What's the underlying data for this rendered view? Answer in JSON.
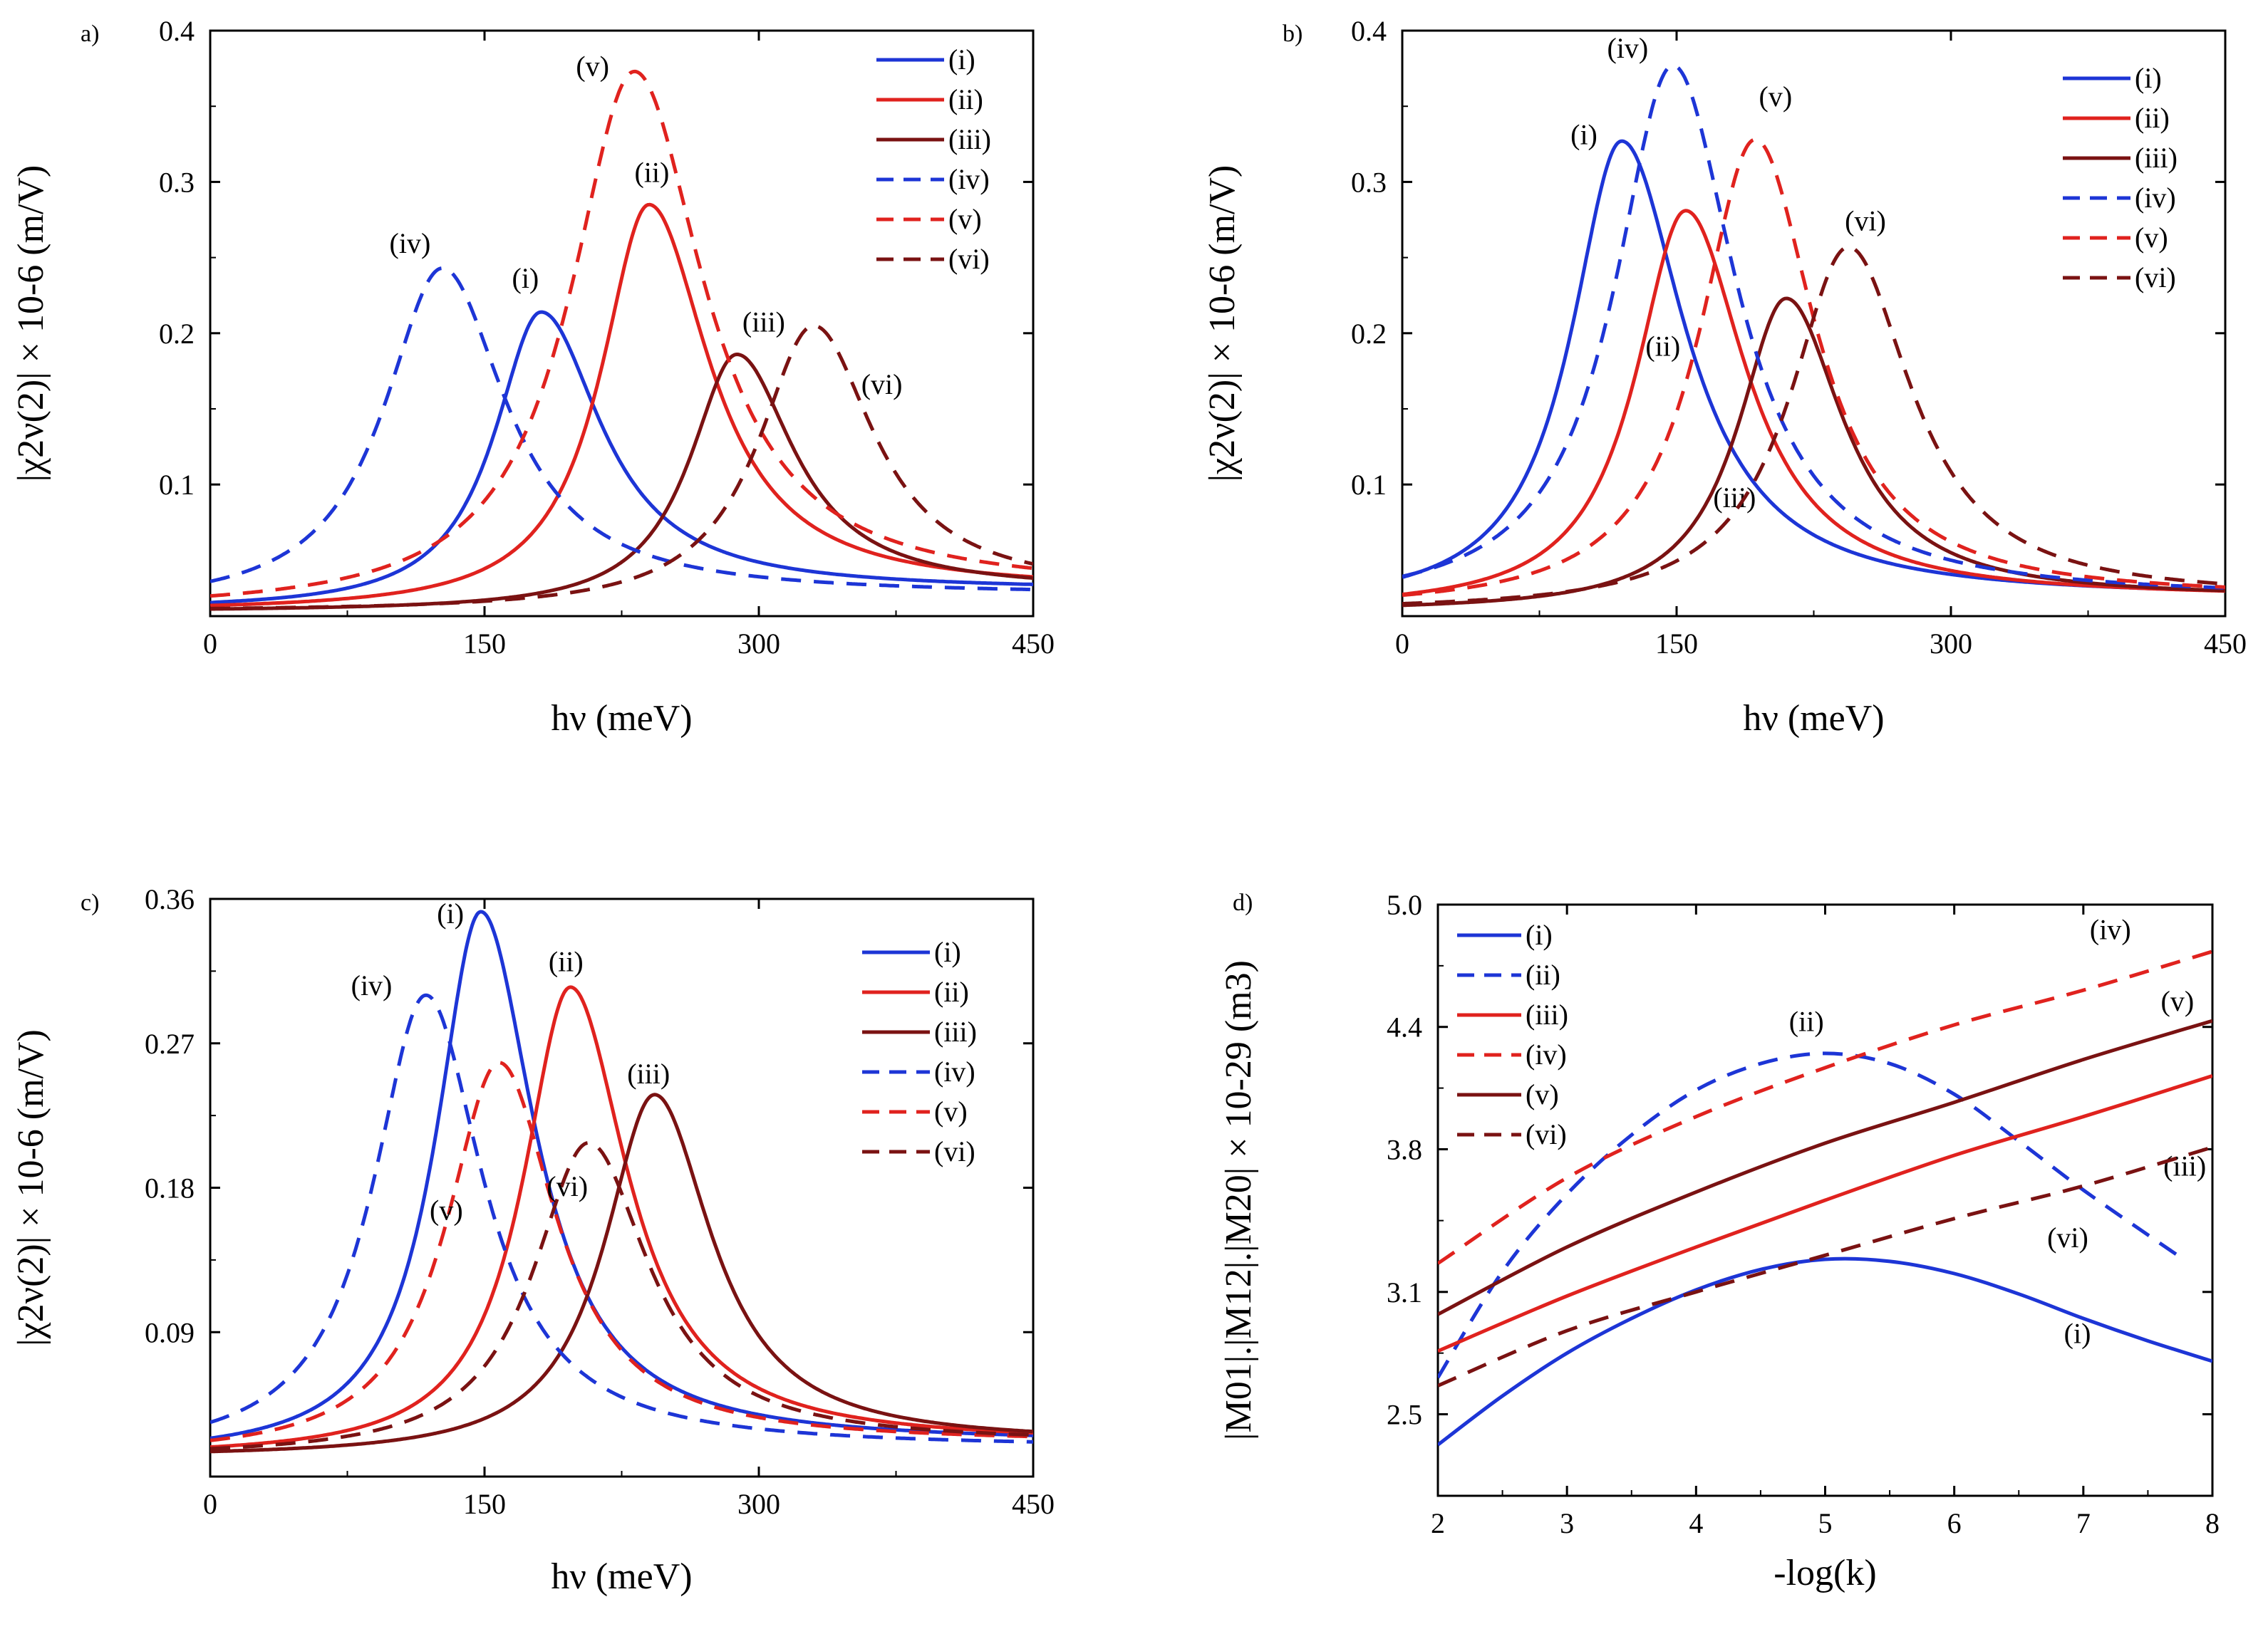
{
  "colors": {
    "blue": "#1d35d6",
    "red": "#e0221e",
    "darkred": "#7a1212"
  },
  "chart_data": [
    {
      "id": "a",
      "panel_label": "a)",
      "type": "line",
      "xlim": [
        0,
        450
      ],
      "ylim": [
        0.013,
        0.4
      ],
      "xticks": [
        0,
        150,
        300,
        450
      ],
      "xtick_labels": [
        "0",
        "150",
        "300",
        "450"
      ],
      "yticks": [
        0.1,
        0.2,
        0.3,
        0.4
      ],
      "ytick_labels": [
        "0.1",
        "0.2",
        "0.3",
        "0.4"
      ],
      "xlabel": "hν (meV)",
      "ylabel": "|χ2ν(2)| × 10-6 (m/V)",
      "legend": [
        "(i)",
        "(ii)",
        "(iii)",
        "(iv)",
        "(v)",
        "(vi)"
      ],
      "legend_position": "top-right",
      "series": [
        {
          "name": "(i)",
          "color": "blue",
          "dash": false,
          "peak_x": 181,
          "peak_y": 0.214,
          "base_left": 0.017,
          "base_right": 0.03,
          "width": 40,
          "rise": 0.8,
          "label": "(i)",
          "label_at": [
            165,
            0.23
          ]
        },
        {
          "name": "(ii)",
          "color": "red",
          "dash": false,
          "peak_x": 240,
          "peak_y": 0.285,
          "base_left": 0.016,
          "base_right": 0.03,
          "width": 40,
          "rise": 0.82,
          "label": "(ii)",
          "label_at": [
            232,
            0.3
          ]
        },
        {
          "name": "(iii)",
          "color": "darkred",
          "dash": false,
          "peak_x": 288,
          "peak_y": 0.186,
          "base_left": 0.016,
          "base_right": 0.03,
          "width": 38,
          "rise": 0.85,
          "label": "(iii)",
          "label_at": [
            291,
            0.201
          ]
        },
        {
          "name": "(iv)",
          "color": "blue",
          "dash": true,
          "peak_x": 127,
          "peak_y": 0.243,
          "base_left": 0.018,
          "base_right": 0.027,
          "width": 42,
          "rise": 0.95,
          "label": "(iv)",
          "label_at": [
            98,
            0.253
          ]
        },
        {
          "name": "(v)",
          "color": "red",
          "dash": true,
          "peak_x": 232,
          "peak_y": 0.373,
          "base_left": 0.016,
          "base_right": 0.03,
          "width": 46,
          "rise": 0.95,
          "label": "(v)",
          "label_at": [
            200,
            0.37
          ]
        },
        {
          "name": "(vi)",
          "color": "darkred",
          "dash": true,
          "peak_x": 330,
          "peak_y": 0.205,
          "base_left": 0.016,
          "base_right": 0.03,
          "width": 40,
          "rise": 0.95,
          "label": "(vi)",
          "label_at": [
            356,
            0.16
          ]
        }
      ]
    },
    {
      "id": "b",
      "panel_label": "b)",
      "type": "line",
      "xlim": [
        0,
        450
      ],
      "ylim": [
        0.013,
        0.4
      ],
      "xticks": [
        0,
        150,
        300,
        450
      ],
      "xtick_labels": [
        "0",
        "150",
        "300",
        "450"
      ],
      "yticks": [
        0.1,
        0.2,
        0.3,
        0.4
      ],
      "ytick_labels": [
        "0.1",
        "0.2",
        "0.3",
        "0.4"
      ],
      "xlabel": "hν (meV)",
      "ylabel": "|χ2ν(2)| × 10-6 (m/V)",
      "legend": [
        "(i)",
        "(ii)",
        "(iii)",
        "(iv)",
        "(v)",
        "(vi)"
      ],
      "legend_position": "top-right",
      "series": [
        {
          "name": "(i)",
          "color": "blue",
          "dash": false,
          "peak_x": 120,
          "peak_y": 0.327,
          "base_left": 0.018,
          "base_right": 0.025,
          "width": 42,
          "rise": 0.82,
          "label": "(i)",
          "label_at": [
            92,
            0.325
          ]
        },
        {
          "name": "(ii)",
          "color": "red",
          "dash": false,
          "peak_x": 155,
          "peak_y": 0.281,
          "base_left": 0.017,
          "base_right": 0.025,
          "width": 40,
          "rise": 0.85,
          "label": "(ii)",
          "label_at": [
            133,
            0.185
          ]
        },
        {
          "name": "(iii)",
          "color": "darkred",
          "dash": false,
          "peak_x": 210,
          "peak_y": 0.223,
          "base_left": 0.016,
          "base_right": 0.025,
          "width": 38,
          "rise": 0.87,
          "label": "(iii)",
          "label_at": [
            170,
            0.085
          ]
        },
        {
          "name": "(iv)",
          "color": "blue",
          "dash": true,
          "peak_x": 148,
          "peak_y": 0.377,
          "base_left": 0.018,
          "base_right": 0.025,
          "width": 42,
          "rise": 0.95,
          "label": "(iv)",
          "label_at": [
            112,
            0.382
          ]
        },
        {
          "name": "(v)",
          "color": "red",
          "dash": true,
          "peak_x": 193,
          "peak_y": 0.328,
          "base_left": 0.017,
          "base_right": 0.025,
          "width": 40,
          "rise": 0.95,
          "label": "(v)",
          "label_at": [
            195,
            0.35
          ]
        },
        {
          "name": "(vi)",
          "color": "darkred",
          "dash": true,
          "peak_x": 244,
          "peak_y": 0.257,
          "base_left": 0.016,
          "base_right": 0.025,
          "width": 42,
          "rise": 0.95,
          "label": "(vi)",
          "label_at": [
            242,
            0.268
          ]
        }
      ]
    },
    {
      "id": "c",
      "panel_label": "c)",
      "type": "line",
      "xlim": [
        0,
        450
      ],
      "ylim": [
        0.0,
        0.36
      ],
      "xticks": [
        0,
        150,
        300,
        450
      ],
      "xtick_labels": [
        "0",
        "150",
        "300",
        "450"
      ],
      "yticks": [
        0.09,
        0.18,
        0.27,
        0.36
      ],
      "ytick_labels": [
        "0.09",
        "0.18",
        "0.27",
        "0.36"
      ],
      "xlabel": "hν (meV)",
      "ylabel": "|χ2ν(2)| × 10-6 (m/V)",
      "legend": [
        "(i)",
        "(ii)",
        "(iii)",
        "(iv)",
        "(v)",
        "(vi)"
      ],
      "legend_position": "top-right",
      "series": [
        {
          "name": "(i)",
          "color": "blue",
          "dash": false,
          "peak_x": 148,
          "peak_y": 0.352,
          "base_left": 0.012,
          "base_right": 0.021,
          "width": 36,
          "rise": 0.85,
          "label": "(i)",
          "label_at": [
            124,
            0.345
          ]
        },
        {
          "name": "(ii)",
          "color": "red",
          "dash": false,
          "peak_x": 197,
          "peak_y": 0.305,
          "base_left": 0.012,
          "base_right": 0.021,
          "width": 38,
          "rise": 0.85,
          "label": "(ii)",
          "label_at": [
            185,
            0.315
          ]
        },
        {
          "name": "(iii)",
          "color": "darkred",
          "dash": false,
          "peak_x": 243,
          "peak_y": 0.238,
          "base_left": 0.012,
          "base_right": 0.021,
          "width": 38,
          "rise": 0.9,
          "label": "(iii)",
          "label_at": [
            228,
            0.245
          ]
        },
        {
          "name": "(iv)",
          "color": "blue",
          "dash": true,
          "peak_x": 118,
          "peak_y": 0.3,
          "base_left": 0.012,
          "base_right": 0.018,
          "width": 38,
          "rise": 0.95,
          "label": "(iv)",
          "label_at": [
            77,
            0.3
          ]
        },
        {
          "name": "(v)",
          "color": "red",
          "dash": true,
          "peak_x": 158,
          "peak_y": 0.258,
          "base_left": 0.012,
          "base_right": 0.021,
          "width": 38,
          "rise": 0.95,
          "label": "(v)",
          "label_at": [
            120,
            0.16
          ]
        },
        {
          "name": "(vi)",
          "color": "darkred",
          "dash": true,
          "peak_x": 207,
          "peak_y": 0.208,
          "base_left": 0.012,
          "base_right": 0.021,
          "width": 40,
          "rise": 0.95,
          "label": "(vi)",
          "label_at": [
            184,
            0.175
          ]
        }
      ]
    },
    {
      "id": "d",
      "panel_label": "d)",
      "type": "line",
      "xlim": [
        2,
        8
      ],
      "ylim": [
        2.1,
        5.0
      ],
      "xticks": [
        2,
        3,
        4,
        5,
        6,
        7,
        8
      ],
      "xtick_labels": [
        "2",
        "3",
        "4",
        "5",
        "6",
        "7",
        "8"
      ],
      "yticks": [
        2.5,
        3.1,
        3.8,
        4.4,
        5.0
      ],
      "ytick_labels": [
        "2.5",
        "3.1",
        "3.8",
        "4.4",
        "5.0"
      ],
      "xlabel": "-log(k)",
      "ylabel": "|M01|.|M12|.|M20| × 10-29 (m3)",
      "legend": [
        "(i)",
        "(ii)",
        "(iii)",
        "(iv)",
        "(v)",
        "(vi)"
      ],
      "legend_position": "top-left",
      "series": [
        {
          "name": "(i)",
          "color": "blue",
          "dash": false,
          "x": [
            2,
            2.5,
            3,
            3.5,
            4,
            4.5,
            5,
            5.5,
            6,
            6.5,
            7,
            7.5,
            8
          ],
          "y": [
            2.35,
            2.59,
            2.8,
            2.97,
            3.11,
            3.21,
            3.26,
            3.25,
            3.19,
            3.09,
            2.97,
            2.86,
            2.76
          ],
          "label": "(i)",
          "label_at": [
            6.85,
            2.85
          ]
        },
        {
          "name": "(ii)",
          "color": "blue",
          "dash": true,
          "x": [
            2,
            2.5,
            3,
            3.5,
            4,
            4.5,
            5,
            5.5,
            6,
            6.5,
            7,
            7.5,
            7.8
          ],
          "y": [
            2.68,
            3.2,
            3.58,
            3.87,
            4.09,
            4.22,
            4.27,
            4.22,
            4.07,
            3.84,
            3.6,
            3.38,
            3.25
          ],
          "label": "(ii)",
          "label_at": [
            4.72,
            4.38
          ]
        },
        {
          "name": "(iii)",
          "color": "red",
          "dash": false,
          "x": [
            2,
            3,
            4,
            5,
            6,
            7,
            8
          ],
          "y": [
            2.81,
            3.08,
            3.32,
            3.55,
            3.77,
            3.96,
            4.16
          ],
          "label": "(iii)",
          "label_at": [
            7.62,
            3.67
          ]
        },
        {
          "name": "(iv)",
          "color": "red",
          "dash": true,
          "x": [
            2,
            3,
            4,
            5,
            6,
            7,
            8
          ],
          "y": [
            3.24,
            3.66,
            3.96,
            4.2,
            4.41,
            4.58,
            4.77
          ],
          "label": "(iv)",
          "label_at": [
            7.05,
            4.83
          ]
        },
        {
          "name": "(v)",
          "color": "darkred",
          "dash": false,
          "x": [
            2,
            3,
            4,
            5,
            6,
            7,
            8
          ],
          "y": [
            2.99,
            3.32,
            3.59,
            3.83,
            4.03,
            4.24,
            4.43
          ],
          "label": "(v)",
          "label_at": [
            7.6,
            4.48
          ]
        },
        {
          "name": "(vi)",
          "color": "darkred",
          "dash": true,
          "x": [
            2,
            3,
            4,
            5,
            6,
            7,
            8
          ],
          "y": [
            2.64,
            2.91,
            3.1,
            3.28,
            3.46,
            3.62,
            3.81
          ],
          "label": "(vi)",
          "label_at": [
            6.72,
            3.32
          ]
        }
      ]
    }
  ]
}
